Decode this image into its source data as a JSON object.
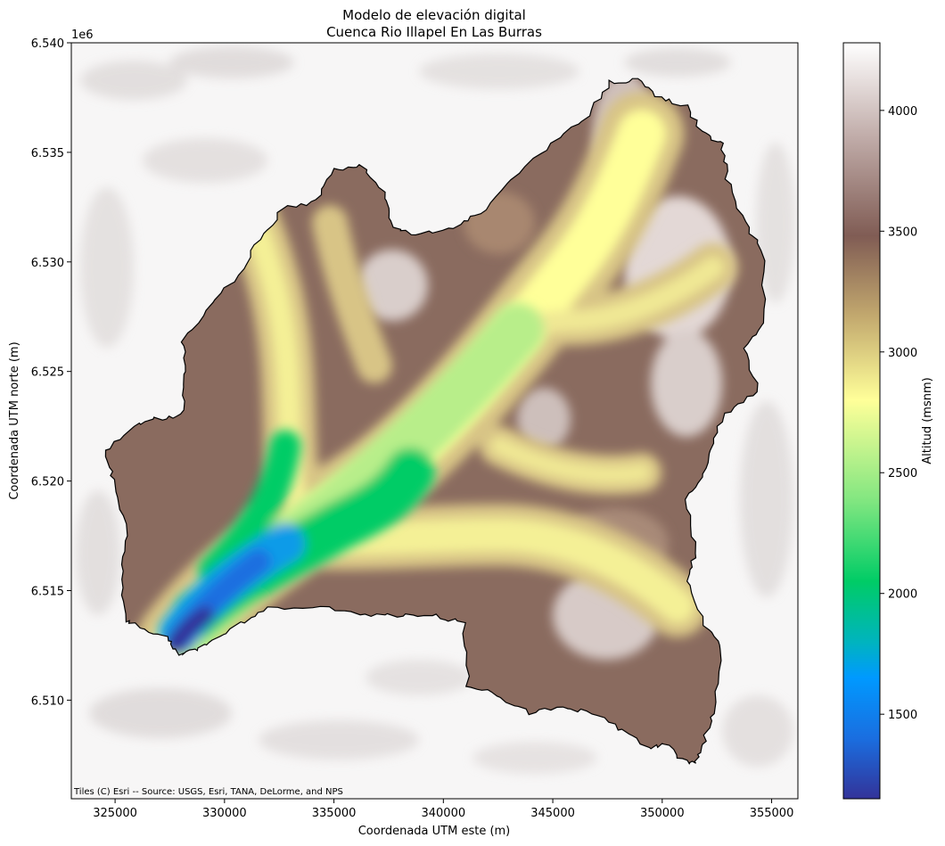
{
  "map": {
    "title_line1": "Modelo de elevación digital",
    "title_line2": "Cuenca Rio Illapel En Las Burras",
    "xlabel": "Coordenada UTM este (m)",
    "ylabel": "Coordenada UTM norte (m)",
    "y_offset_label": "1e6",
    "attribution": "Tiles (C) Esri -- Source: USGS, Esri, TANA, DeLorme, and NPS",
    "x_ticks": [
      {
        "value": 325000,
        "label": "325000"
      },
      {
        "value": 330000,
        "label": "330000"
      },
      {
        "value": 335000,
        "label": "335000"
      },
      {
        "value": 340000,
        "label": "340000"
      },
      {
        "value": 345000,
        "label": "345000"
      },
      {
        "value": 350000,
        "label": "350000"
      },
      {
        "value": 355000,
        "label": "355000"
      }
    ],
    "y_ticks": [
      {
        "value": 6510000,
        "label": "6.510"
      },
      {
        "value": 6515000,
        "label": "6.515"
      },
      {
        "value": 6520000,
        "label": "6.520"
      },
      {
        "value": 6525000,
        "label": "6.525"
      },
      {
        "value": 6530000,
        "label": "6.530"
      },
      {
        "value": 6535000,
        "label": "6.535"
      },
      {
        "value": 6540000,
        "label": "6.540"
      }
    ],
    "x_range": [
      323000,
      356200
    ],
    "y_range": [
      6505500,
      6540000
    ],
    "basemap": "Esri hillshade (grey)",
    "colormap": "terrain"
  },
  "colorbar": {
    "label": "Altitud (msnm)",
    "range": [
      1150,
      4280
    ],
    "ticks": [
      {
        "value": 1500,
        "label": "1500"
      },
      {
        "value": 2000,
        "label": "2000"
      },
      {
        "value": 2500,
        "label": "2500"
      },
      {
        "value": 3000,
        "label": "3000"
      },
      {
        "value": 3500,
        "label": "3500"
      },
      {
        "value": 4000,
        "label": "4000"
      }
    ],
    "stops": [
      {
        "value": 1150,
        "color": "#333399"
      },
      {
        "value": 1400,
        "color": "#1a6ee0"
      },
      {
        "value": 1650,
        "color": "#0099ff"
      },
      {
        "value": 1800,
        "color": "#00b4be"
      },
      {
        "value": 2050,
        "color": "#00cc66"
      },
      {
        "value": 2380,
        "color": "#80e680"
      },
      {
        "value": 2800,
        "color": "#ffff99"
      },
      {
        "value": 3150,
        "color": "#c2a86e"
      },
      {
        "value": 3480,
        "color": "#805c54"
      },
      {
        "value": 3900,
        "color": "#c2aeab"
      },
      {
        "value": 4280,
        "color": "#ffffff"
      }
    ]
  }
}
